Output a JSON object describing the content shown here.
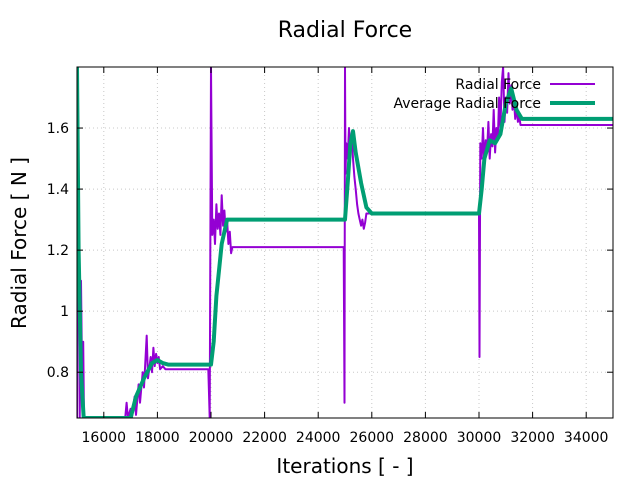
{
  "chart_data": {
    "type": "line",
    "title": "Radial Force",
    "xlabel": "Iterations [ - ]",
    "ylabel": "Radial Force [ N ]",
    "xlim": [
      15000,
      35000
    ],
    "ylim": [
      0.65,
      1.8
    ],
    "xticks": [
      16000,
      18000,
      20000,
      22000,
      24000,
      26000,
      28000,
      30000,
      32000,
      34000
    ],
    "yticks": [
      0.8,
      1,
      1.2,
      1.4,
      1.6
    ],
    "ytick_labels": [
      "0.8",
      "1",
      "1.2",
      "1.4",
      "1.6"
    ],
    "grid": true,
    "legend_position": "top-right",
    "series": [
      {
        "name": "Radial Force",
        "color": "#9400d3",
        "x": [
          15000,
          15030,
          15060,
          15100,
          15150,
          15200,
          15230,
          15260,
          15300,
          16800,
          16850,
          16900,
          17000,
          17050,
          17150,
          17200,
          17300,
          17350,
          17450,
          17500,
          17600,
          17650,
          17750,
          17800,
          17850,
          17900,
          17950,
          18000,
          18050,
          18100,
          18200,
          18300,
          19000,
          19900,
          19950,
          20000,
          20050,
          20100,
          20150,
          20200,
          20250,
          20300,
          20350,
          20400,
          20450,
          20500,
          20550,
          20600,
          20650,
          20700,
          20750,
          20800,
          24950,
          24980,
          25000,
          25020,
          25050,
          25100,
          25150,
          25200,
          25250,
          25300,
          25350,
          25400,
          25450,
          25500,
          25550,
          25600,
          25650,
          25700,
          25750,
          25800,
          30000,
          30020,
          30050,
          30100,
          30150,
          30200,
          30250,
          30300,
          30350,
          30400,
          30450,
          30500,
          30550,
          30600,
          30650,
          30700,
          30750,
          30800,
          30850,
          30900,
          30950,
          31000,
          31050,
          31100,
          31150,
          31200,
          31250,
          31300,
          31350,
          31400,
          31450,
          31500,
          31550,
          31600,
          35000
        ],
        "y": [
          0.65,
          1.8,
          1.3,
          0.65,
          1.1,
          0.7,
          0.9,
          0.65,
          0.65,
          0.65,
          0.7,
          0.65,
          0.68,
          0.65,
          0.72,
          0.66,
          0.76,
          0.7,
          0.8,
          0.75,
          0.92,
          0.78,
          0.85,
          0.8,
          0.88,
          0.82,
          0.86,
          0.83,
          0.85,
          0.81,
          0.82,
          0.81,
          0.81,
          0.81,
          0.65,
          1.8,
          1.25,
          1.3,
          1.22,
          1.35,
          1.27,
          1.32,
          1.25,
          1.38,
          1.28,
          1.33,
          1.26,
          1.3,
          1.22,
          1.26,
          1.19,
          1.21,
          1.21,
          0.7,
          1.8,
          1.45,
          1.55,
          1.5,
          1.6,
          1.52,
          1.58,
          1.5,
          1.44,
          1.4,
          1.35,
          1.32,
          1.3,
          1.28,
          1.3,
          1.27,
          1.29,
          1.32,
          1.32,
          0.85,
          1.55,
          1.5,
          1.6,
          1.48,
          1.56,
          1.52,
          1.62,
          1.5,
          1.58,
          1.54,
          1.66,
          1.52,
          1.6,
          1.56,
          1.7,
          1.6,
          1.75,
          1.8,
          1.62,
          1.7,
          1.65,
          1.78,
          1.68,
          1.74,
          1.66,
          1.7,
          1.63,
          1.67,
          1.62,
          1.64,
          1.61,
          1.61,
          1.61
        ]
      },
      {
        "name": "Average Radial Force",
        "color": "#009e73",
        "x": [
          15000,
          15060,
          15150,
          15250,
          17000,
          17200,
          17500,
          17800,
          18000,
          18200,
          18400,
          20000,
          20100,
          20200,
          20400,
          20600,
          20800,
          21000,
          25000,
          25100,
          25200,
          25300,
          25400,
          25600,
          25800,
          26000,
          30000,
          30100,
          30200,
          30400,
          30600,
          30800,
          31000,
          31200,
          31400,
          31600,
          35000
        ],
        "y": [
          1.8,
          1.2,
          0.8,
          0.65,
          0.65,
          0.72,
          0.78,
          0.83,
          0.84,
          0.83,
          0.825,
          0.825,
          0.9,
          1.05,
          1.22,
          1.3,
          1.3,
          1.3,
          1.3,
          1.42,
          1.55,
          1.59,
          1.52,
          1.42,
          1.34,
          1.32,
          1.32,
          1.4,
          1.5,
          1.56,
          1.55,
          1.58,
          1.68,
          1.73,
          1.66,
          1.63,
          1.63
        ]
      }
    ]
  }
}
